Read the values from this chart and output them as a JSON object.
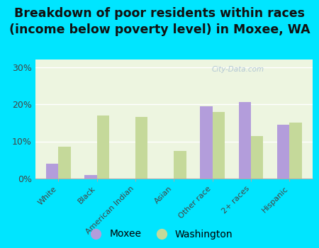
{
  "title": "Breakdown of poor residents within races\n(income below poverty level) in Moxee, WA",
  "categories": [
    "White",
    "Black",
    "American Indian",
    "Asian",
    "Other race",
    "2+ races",
    "Hispanic"
  ],
  "moxee_values": [
    4.0,
    1.0,
    0.0,
    0.0,
    19.5,
    20.5,
    14.5
  ],
  "washington_values": [
    8.5,
    17.0,
    16.5,
    7.5,
    18.0,
    11.5,
    15.0
  ],
  "moxee_color": "#b39ddb",
  "washington_color": "#c5d99a",
  "plot_bg_color": "#edf5e0",
  "outer_bg_color": "#00e5ff",
  "ylim": [
    0,
    32
  ],
  "yticks": [
    0,
    10,
    20,
    30
  ],
  "ytick_labels": [
    "0%",
    "10%",
    "20%",
    "30%"
  ],
  "title_fontsize": 12.5,
  "legend_labels": [
    "Moxee",
    "Washington"
  ],
  "watermark": "City-Data.com",
  "bar_width": 0.32
}
